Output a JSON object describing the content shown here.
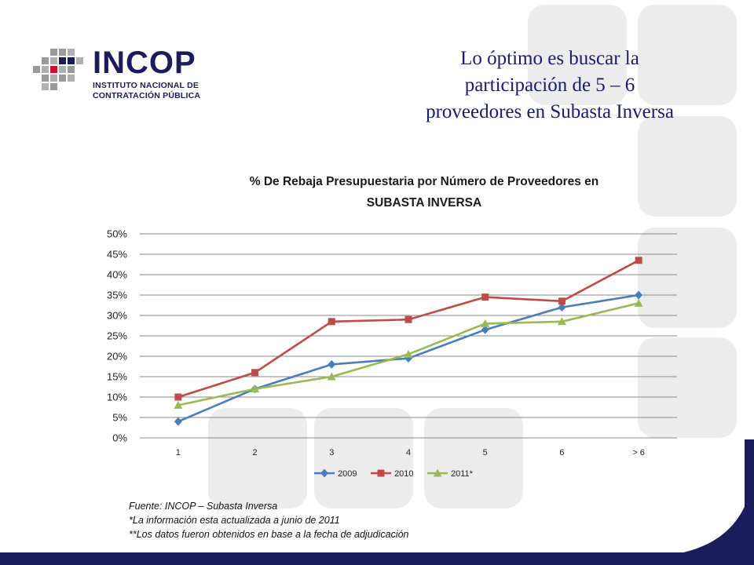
{
  "logo": {
    "name": "INCOP",
    "line1": "INSTITUTO NACIONAL DE",
    "line2": "CONTRATACIÓN PÚBLICA"
  },
  "headline": {
    "line1": "Lo óptimo es buscar la",
    "line2": "participación de 5 – 6",
    "line3": "proveedores en Subasta Inversa"
  },
  "notes": {
    "source": "Fuente: INCOP – Subasta Inversa",
    "note1": "*La información esta actualizada a junio de 2011",
    "note2": "**Los datos fueron obtenidos en base a la fecha de adjudicación"
  },
  "colors": {
    "headline": "#1a1a6e",
    "brand_navy": "#1c1c5a",
    "decor_gray": "#ededed",
    "s2009": "#4a7ebb",
    "s2010": "#be4b48",
    "s2011": "#98b954"
  },
  "chart_data": {
    "type": "line",
    "title_line1": "% De Rebaja Presupuestaria por Número de Proveedores en",
    "title_line2": "SUBASTA INVERSA",
    "categories": [
      "1",
      "2",
      "3",
      "4",
      "5",
      "6",
      "> 6"
    ],
    "y_ticks": [
      "0%",
      "5%",
      "10%",
      "15%",
      "20%",
      "25%",
      "30%",
      "35%",
      "40%",
      "45%",
      "50%"
    ],
    "ylim": [
      0,
      0.5
    ],
    "grid": true,
    "legend_position": "bottom",
    "series": [
      {
        "name": "2009",
        "marker": "diamond",
        "color": "#4a7ebb",
        "values": [
          0.04,
          0.12,
          0.18,
          0.195,
          0.265,
          0.32,
          0.35
        ]
      },
      {
        "name": "2010",
        "marker": "square",
        "color": "#be4b48",
        "values": [
          0.1,
          0.16,
          0.285,
          0.29,
          0.345,
          0.335,
          0.435
        ]
      },
      {
        "name": "2011*",
        "marker": "triangle",
        "color": "#98b954",
        "values": [
          0.08,
          0.12,
          0.15,
          0.205,
          0.28,
          0.285,
          0.33
        ]
      }
    ]
  }
}
